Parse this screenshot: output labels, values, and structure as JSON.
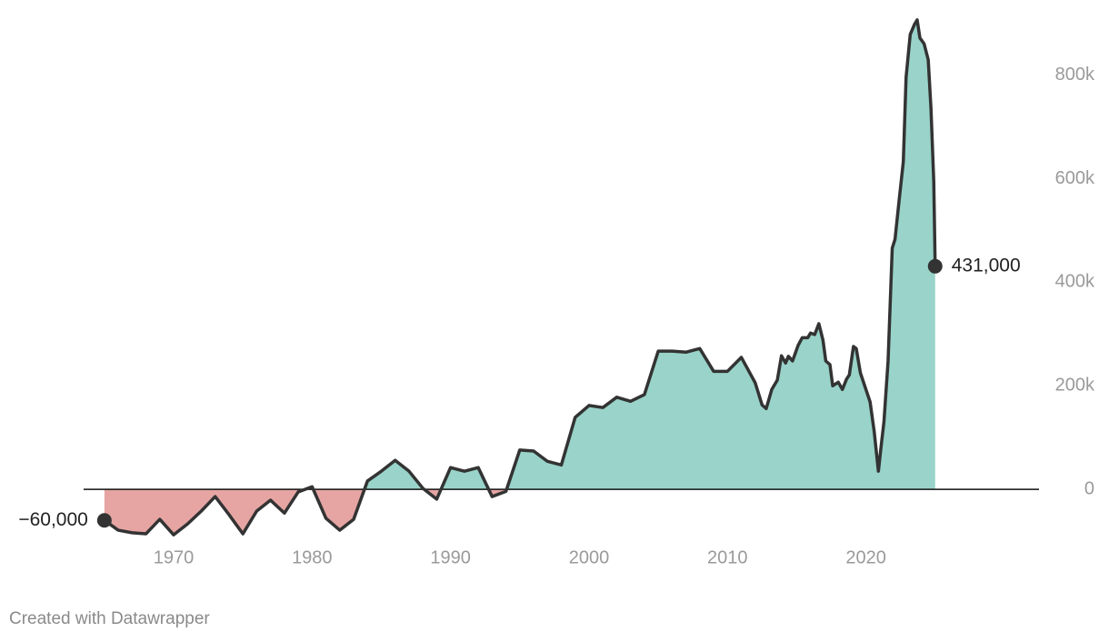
{
  "chart_data": {
    "type": "area",
    "x": [
      1965,
      1966,
      1967,
      1968,
      1969,
      1970,
      1971,
      1972,
      1973,
      1974,
      1975,
      1976,
      1977,
      1978,
      1979,
      1980,
      1981,
      1982,
      1983,
      1984,
      1985,
      1986,
      1987,
      1988,
      1989,
      1990,
      1991,
      1992,
      1993,
      1994,
      1995,
      1996,
      1997,
      1998,
      1999,
      2000,
      2001,
      2002,
      2003,
      2004,
      2005,
      2006,
      2007,
      2008,
      2009,
      2010,
      2011,
      2012,
      2012.5,
      2012.8,
      2013.2,
      2013.6,
      2013.9,
      2014.2,
      2014.4,
      2014.7,
      2015.1,
      2015.4,
      2015.8,
      2016,
      2016.3,
      2016.6,
      2016.9,
      2017.1,
      2017.4,
      2017.6,
      2018,
      2018.3,
      2018.6,
      2018.8,
      2019.1,
      2019.3,
      2019.6,
      2020.3,
      2020.6,
      2020.9,
      2021.1,
      2021.3,
      2021.6,
      2021.9,
      2022.1,
      2022.4,
      2022.7,
      2022.9,
      2023.2,
      2023.5,
      2023.7,
      2023.9,
      2024.2,
      2024.5,
      2024.7,
      2024.9,
      2025
    ],
    "values": [
      -60000,
      -79000,
      -84000,
      -86000,
      -58000,
      -88000,
      -67000,
      -42000,
      -14000,
      -49000,
      -86000,
      -42000,
      -21000,
      -46000,
      -5000,
      5000,
      -56000,
      -79000,
      -58000,
      16000,
      35000,
      56000,
      35000,
      2000,
      -19000,
      42000,
      35000,
      42000,
      -14000,
      -4000,
      76000,
      74000,
      54000,
      47000,
      139000,
      162000,
      158000,
      178000,
      170000,
      183000,
      267000,
      267000,
      265000,
      272000,
      228000,
      228000,
      255000,
      206000,
      163000,
      156000,
      193000,
      211000,
      258000,
      244000,
      257000,
      248000,
      278000,
      293000,
      293000,
      302000,
      299000,
      320000,
      288000,
      248000,
      241000,
      200000,
      207000,
      193000,
      213000,
      221000,
      276000,
      272000,
      225000,
      169000,
      111000,
      35000,
      84000,
      130000,
      248000,
      466000,
      483000,
      559000,
      633000,
      796000,
      879000,
      898000,
      907000,
      872000,
      861000,
      830000,
      735000,
      594000,
      431000
    ],
    "value_labels": [
      "−60,000",
      null,
      null,
      null,
      null,
      null,
      null,
      null,
      null,
      null,
      null,
      null,
      null,
      null,
      null,
      null,
      null,
      null,
      null,
      null,
      null,
      null,
      null,
      null,
      null,
      null,
      null,
      null,
      null,
      null,
      null,
      null,
      null,
      null,
      null,
      null,
      null,
      null,
      null,
      null,
      null,
      null,
      null,
      null,
      null,
      null,
      null,
      null,
      null,
      null,
      null,
      null,
      null,
      null,
      null,
      null,
      null,
      null,
      null,
      null,
      null,
      null,
      null,
      null,
      null,
      null,
      null,
      null,
      null,
      null,
      null,
      null,
      null,
      null,
      null,
      null,
      null,
      null,
      null,
      null,
      null,
      null,
      null,
      null,
      null,
      null,
      null,
      null,
      null,
      null,
      null,
      null,
      "431,000"
    ],
    "color": "#333333",
    "positive_color": "#99d3c9",
    "negative_color": "#e6a5a3",
    "xlim": [
      1963.5,
      2032.5
    ],
    "xticks": [
      1970,
      1980,
      1990,
      2000,
      2010,
      2020
    ],
    "ylim": [
      -100000,
      920000
    ],
    "yticks": [
      0,
      {
        "value": 200000,
        "label": "200k"
      },
      {
        "value": 400000,
        "label": "400k"
      },
      {
        "value": 600000,
        "label": "600k"
      },
      {
        "value": 800000,
        "label": "800k"
      }
    ],
    "grid": false,
    "footer": "Created with Datawrapper"
  }
}
